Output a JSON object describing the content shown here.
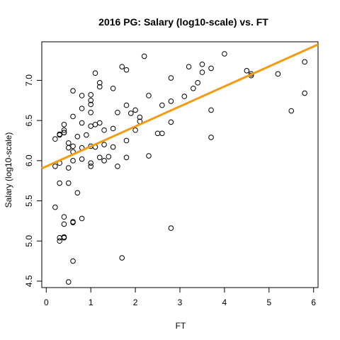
{
  "chart_data": {
    "type": "scatter",
    "title": "2016 PG: Salary (log10-scale) vs. FT",
    "xlabel": "FT",
    "ylabel": "Salary (log10-scale)",
    "xlim": [
      -0.1,
      6.1
    ],
    "ylim": [
      4.42,
      7.48
    ],
    "xticks": [
      0,
      1,
      2,
      3,
      4,
      5,
      6
    ],
    "yticks": [
      4.5,
      5.0,
      5.5,
      6.0,
      6.5,
      7.0
    ],
    "ytick_labels": [
      "4.5",
      "5.0",
      "5.5",
      "6.0",
      "6.5",
      "7.0"
    ],
    "grid": false,
    "legend": "none",
    "colors": {
      "points": "#000000",
      "fit_line": "#f39c12",
      "background": "#ffffff"
    },
    "fit_line": {
      "x": [
        -0.1,
        6.1
      ],
      "y": [
        5.904,
        7.447
      ]
    },
    "points": [
      [
        0.2,
        6.27
      ],
      [
        0.2,
        5.93
      ],
      [
        0.2,
        5.42
      ],
      [
        0.3,
        6.33
      ],
      [
        0.3,
        6.32
      ],
      [
        0.3,
        5.97
      ],
      [
        0.3,
        5.72
      ],
      [
        0.3,
        5.04
      ],
      [
        0.3,
        5.0
      ],
      [
        0.4,
        6.45
      ],
      [
        0.4,
        6.38
      ],
      [
        0.4,
        6.35
      ],
      [
        0.4,
        6.35
      ],
      [
        0.4,
        5.3
      ],
      [
        0.4,
        5.21
      ],
      [
        0.4,
        5.05
      ],
      [
        0.4,
        5.04
      ],
      [
        0.5,
        6.22
      ],
      [
        0.5,
        6.16
      ],
      [
        0.5,
        5.91
      ],
      [
        0.5,
        5.72
      ],
      [
        0.5,
        4.49
      ],
      [
        0.6,
        6.87
      ],
      [
        0.6,
        6.55
      ],
      [
        0.6,
        6.18
      ],
      [
        0.6,
        6.11
      ],
      [
        0.6,
        6.0
      ],
      [
        0.6,
        5.24
      ],
      [
        0.6,
        5.23
      ],
      [
        0.6,
        4.75
      ],
      [
        0.7,
        6.3
      ],
      [
        0.7,
        5.6
      ],
      [
        0.8,
        6.81
      ],
      [
        0.8,
        6.65
      ],
      [
        0.8,
        6.47
      ],
      [
        0.8,
        6.16
      ],
      [
        0.8,
        6.02
      ],
      [
        0.8,
        5.28
      ],
      [
        0.9,
        6.32
      ],
      [
        1.0,
        6.82
      ],
      [
        1.0,
        6.75
      ],
      [
        1.0,
        6.7
      ],
      [
        1.0,
        6.6
      ],
      [
        1.0,
        6.43
      ],
      [
        1.0,
        6.18
      ],
      [
        1.0,
        5.97
      ],
      [
        1.0,
        5.93
      ],
      [
        1.1,
        7.09
      ],
      [
        1.1,
        6.45
      ],
      [
        1.1,
        6.17
      ],
      [
        1.2,
        6.97
      ],
      [
        1.2,
        6.92
      ],
      [
        1.2,
        6.47
      ],
      [
        1.2,
        6.04
      ],
      [
        1.3,
        6.38
      ],
      [
        1.3,
        6.2
      ],
      [
        1.3,
        6.0
      ],
      [
        1.4,
        6.05
      ],
      [
        1.5,
        6.9
      ],
      [
        1.5,
        6.4
      ],
      [
        1.5,
        6.17
      ],
      [
        1.6,
        6.6
      ],
      [
        1.6,
        5.93
      ],
      [
        1.7,
        7.17
      ],
      [
        1.7,
        4.79
      ],
      [
        1.8,
        7.13
      ],
      [
        1.8,
        6.69
      ],
      [
        1.8,
        6.25
      ],
      [
        1.8,
        6.04
      ],
      [
        1.9,
        6.59
      ],
      [
        2.0,
        6.63
      ],
      [
        2.0,
        6.38
      ],
      [
        2.1,
        6.54
      ],
      [
        2.1,
        6.49
      ],
      [
        2.2,
        7.3
      ],
      [
        2.3,
        6.81
      ],
      [
        2.3,
        6.06
      ],
      [
        2.5,
        6.34
      ],
      [
        2.6,
        6.69
      ],
      [
        2.6,
        6.34
      ],
      [
        2.8,
        7.03
      ],
      [
        2.8,
        6.74
      ],
      [
        2.8,
        6.48
      ],
      [
        2.8,
        5.16
      ],
      [
        3.1,
        6.8
      ],
      [
        3.2,
        7.17
      ],
      [
        3.3,
        6.9
      ],
      [
        3.4,
        6.97
      ],
      [
        3.5,
        7.2
      ],
      [
        3.5,
        7.1
      ],
      [
        3.7,
        7.15
      ],
      [
        3.7,
        6.63
      ],
      [
        3.7,
        6.29
      ],
      [
        4.0,
        7.33
      ],
      [
        4.5,
        7.12
      ],
      [
        4.6,
        7.08
      ],
      [
        4.6,
        7.06
      ],
      [
        5.2,
        7.08
      ],
      [
        5.5,
        6.62
      ],
      [
        5.8,
        7.23
      ],
      [
        5.8,
        6.84
      ]
    ]
  }
}
